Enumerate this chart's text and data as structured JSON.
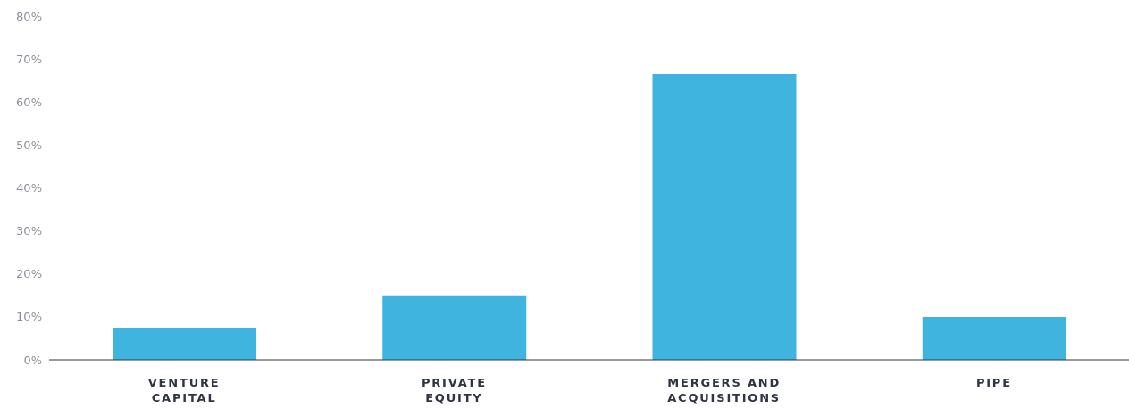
{
  "chart_data": {
    "type": "bar",
    "categories": [
      "VENTURE\nCAPITAL",
      "PRIVATE\nEQUITY",
      "MERGERS AND\nACQUISITIONS",
      "PIPE"
    ],
    "values": [
      7.5,
      15,
      66.5,
      10
    ],
    "color": "#3eb4de",
    "ylim": [
      0,
      80
    ],
    "yticks": [
      {
        "value": 0,
        "label": "0%"
      },
      {
        "value": 10,
        "label": "10%"
      },
      {
        "value": 20,
        "label": "20%"
      },
      {
        "value": 30,
        "label": "30%"
      },
      {
        "value": 40,
        "label": "40%"
      },
      {
        "value": 50,
        "label": "50%"
      },
      {
        "value": 60,
        "label": "60%"
      },
      {
        "value": 70,
        "label": "70%"
      },
      {
        "value": 80,
        "label": "80%"
      }
    ],
    "grid": false,
    "legend": false
  }
}
